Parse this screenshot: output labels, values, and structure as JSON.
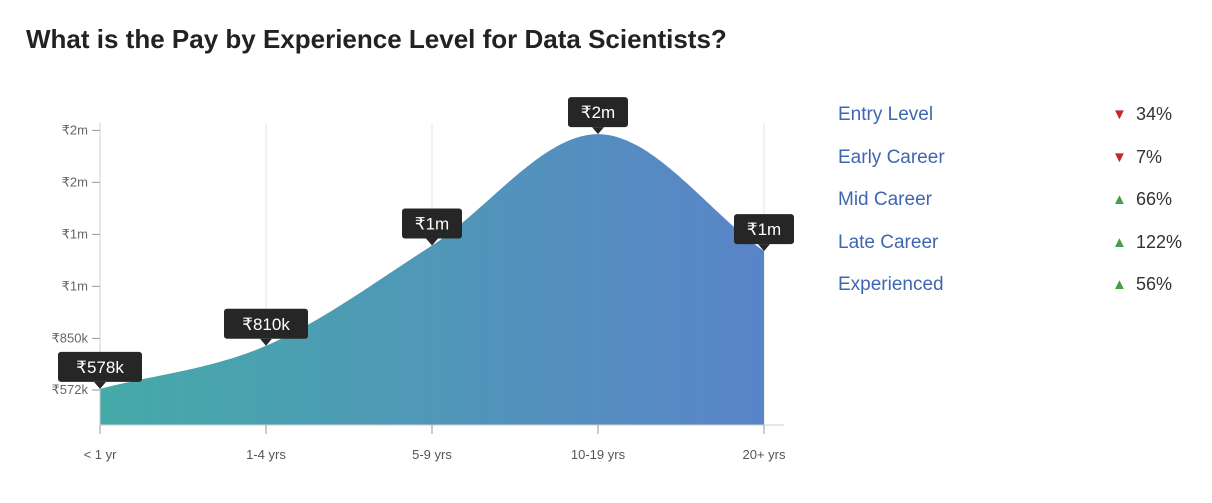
{
  "chart_data": {
    "type": "area",
    "title": "What is the Pay by Experience Level for Data Scientists?",
    "categories": [
      "< 1 yr",
      "1-4 yrs",
      "5-9 yrs",
      "10-19 yrs",
      "20+ yrs"
    ],
    "values": [
      578000,
      810000,
      1350000,
      1950000,
      1320000
    ],
    "data_labels": [
      "₹578k",
      "₹810k",
      "₹1m",
      "₹2m",
      "₹1m"
    ],
    "y_ticks": [
      {
        "value": 572000,
        "label": "₹572k"
      },
      {
        "value": 850000,
        "label": "₹850k"
      },
      {
        "value": 1130000,
        "label": "₹1m"
      },
      {
        "value": 1410000,
        "label": "₹1m"
      },
      {
        "value": 1690000,
        "label": "₹2m"
      },
      {
        "value": 1970000,
        "label": "₹2m"
      }
    ],
    "ylim": [
      380000,
      2000000
    ],
    "grid": "vertical",
    "colors": {
      "area_start": "#45aaa8",
      "area_end": "#5a84c8",
      "label_bg": "#262626"
    }
  },
  "legend": {
    "items": [
      {
        "name": "Entry Level",
        "direction": "down",
        "arrow": "▼",
        "change": "34%"
      },
      {
        "name": "Early Career",
        "direction": "down",
        "arrow": "▼",
        "change": "7%"
      },
      {
        "name": "Mid Career",
        "direction": "up",
        "arrow": "▲",
        "change": "66%"
      },
      {
        "name": "Late Career",
        "direction": "up",
        "arrow": "▲",
        "change": "122%"
      },
      {
        "name": "Experienced",
        "direction": "up",
        "arrow": "▲",
        "change": "56%"
      }
    ]
  }
}
